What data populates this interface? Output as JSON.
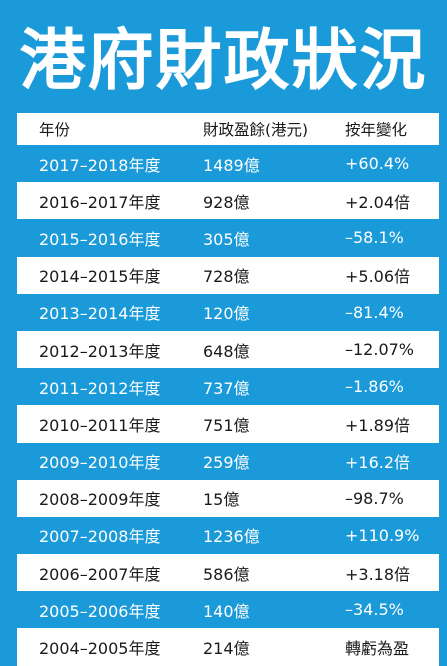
{
  "title": "港府財政狀況",
  "table": {
    "headers": [
      "年份",
      "財政盈餘(港元)",
      "按年變化"
    ],
    "rows": [
      {
        "year": "2017–2018年度",
        "surplus": "1489億",
        "change": "+60.4%"
      },
      {
        "year": "2016–2017年度",
        "surplus": "928億",
        "change": "+2.04倍"
      },
      {
        "year": "2015–2016年度",
        "surplus": "305億",
        "change": "–58.1%"
      },
      {
        "year": "2014–2015年度",
        "surplus": "728億",
        "change": "+5.06倍"
      },
      {
        "year": "2013–2014年度",
        "surplus": "120億",
        "change": "–81.4%"
      },
      {
        "year": "2012–2013年度",
        "surplus": "648億",
        "change": "–12.07%"
      },
      {
        "year": "2011–2012年度",
        "surplus": "737億",
        "change": "–1.86%"
      },
      {
        "year": "2010–2011年度",
        "surplus": "751億",
        "change": "+1.89倍"
      },
      {
        "year": "2009–2010年度",
        "surplus": "259億",
        "change": "+16.2倍"
      },
      {
        "year": "2008–2009年度",
        "surplus": "15億",
        "change": "–98.7%"
      },
      {
        "year": "2007–2008年度",
        "surplus": "1236億",
        "change": "+110.9%"
      },
      {
        "year": "2006–2007年度",
        "surplus": "586億",
        "change": "+3.18倍"
      },
      {
        "year": "2005–2006年度",
        "surplus": "140億",
        "change": "–34.5%"
      },
      {
        "year": "2004–2005年度",
        "surplus": "214億",
        "change": "轉虧為盈"
      }
    ]
  }
}
